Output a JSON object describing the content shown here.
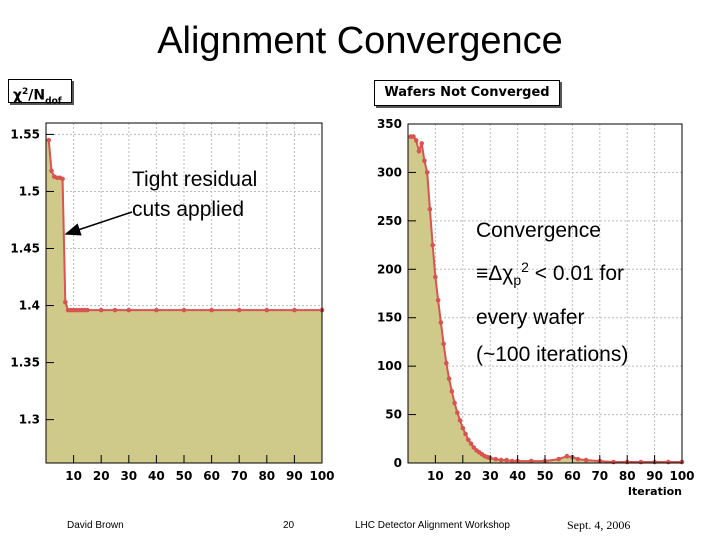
{
  "slide": {
    "title": "Alignment Convergence",
    "annotation_left": [
      "Tight residual",
      "cuts applied"
    ],
    "annotation_right": {
      "line1": "Convergence",
      "line2_prefix": "≡Δχ",
      "line2_sub": "p",
      "line2_sup": "2",
      "line2_suffix": " < 0.01 for",
      "line3": "every wafer",
      "line4": "(~100 iterations)"
    },
    "footer": {
      "author": "David Brown",
      "page": "20",
      "event": "LHC Detector Alignment Workshop",
      "date": "Sept. 4, 2006"
    }
  },
  "colors": {
    "fill": "#cfc98a",
    "line": "#d9534f",
    "grid": "#bdbdbd",
    "frame": "#000000"
  },
  "chart_data": [
    {
      "type": "area",
      "title": "χ2/Ndof",
      "title_main": "χ",
      "title_sup": "2",
      "title_mid": "/N",
      "title_sub": "dof",
      "xlabel": "",
      "ylabel": "",
      "xlim": [
        0,
        100
      ],
      "ylim": [
        1.262,
        1.56
      ],
      "grid": true,
      "xticks": [
        10,
        20,
        30,
        40,
        50,
        60,
        70,
        80,
        90,
        100
      ],
      "yticks": [
        1.3,
        1.35,
        1.4,
        1.45,
        1.5,
        1.55
      ],
      "ytick_labels": [
        "1.3",
        "1.35",
        "1.4",
        "1.45",
        "1.5",
        "1.55"
      ],
      "x": [
        1,
        2,
        3,
        4,
        5,
        6,
        7,
        8,
        9,
        10,
        11,
        12,
        13,
        14,
        15,
        20,
        25,
        30,
        40,
        50,
        60,
        70,
        80,
        90,
        100
      ],
      "values": [
        1.545,
        1.518,
        1.513,
        1.512,
        1.512,
        1.511,
        1.403,
        1.396,
        1.396,
        1.396,
        1.396,
        1.396,
        1.396,
        1.396,
        1.396,
        1.396,
        1.396,
        1.396,
        1.396,
        1.396,
        1.396,
        1.396,
        1.396,
        1.396,
        1.396
      ]
    },
    {
      "type": "area",
      "title": "Wafers Not Converged",
      "xlabel": "Iteration",
      "ylabel": "",
      "xlim": [
        0,
        100
      ],
      "ylim": [
        0,
        350
      ],
      "grid": true,
      "xticks": [
        10,
        20,
        30,
        40,
        50,
        60,
        70,
        80,
        90,
        100
      ],
      "yticks": [
        0,
        50,
        100,
        150,
        200,
        250,
        300,
        350
      ],
      "x": [
        1,
        2,
        3,
        4,
        5,
        6,
        7,
        8,
        9,
        10,
        11,
        12,
        13,
        14,
        15,
        16,
        17,
        18,
        19,
        20,
        21,
        22,
        23,
        24,
        25,
        26,
        27,
        28,
        29,
        30,
        32,
        34,
        36,
        38,
        40,
        45,
        50,
        55,
        58,
        60,
        62,
        65,
        70,
        75,
        80,
        85,
        90,
        95,
        100
      ],
      "values": [
        337,
        337,
        333,
        322,
        330,
        312,
        300,
        262,
        225,
        192,
        168,
        145,
        123,
        103,
        87,
        74,
        62,
        52,
        44,
        36,
        30,
        24,
        20,
        16,
        13,
        11,
        9,
        7,
        6,
        5,
        4,
        3,
        3,
        2,
        2,
        2,
        2,
        4,
        7,
        6,
        4,
        3,
        2,
        1,
        1,
        1,
        1,
        1,
        1
      ]
    }
  ]
}
